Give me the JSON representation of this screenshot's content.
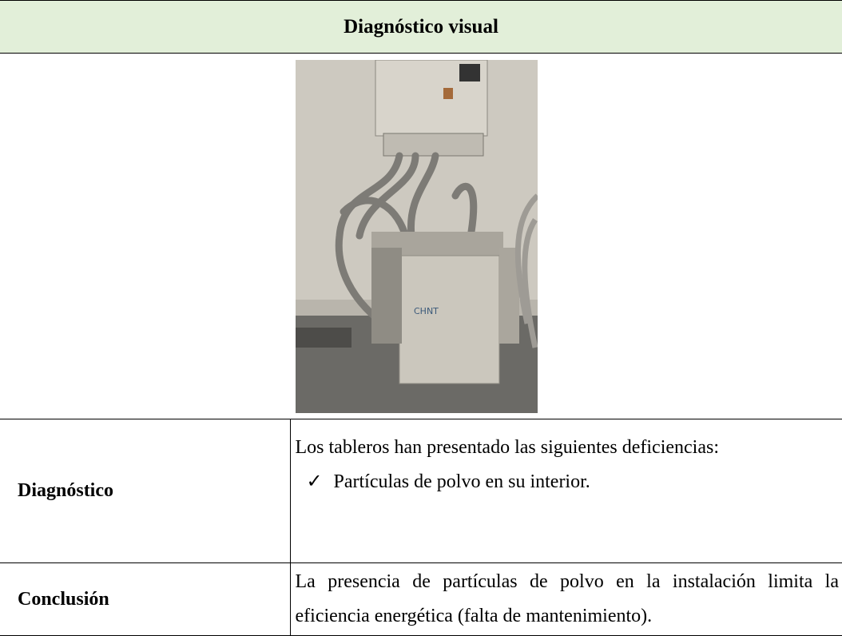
{
  "header": {
    "title": "Diagnóstico visual"
  },
  "table": {
    "rows": [
      {
        "label": "Diagnóstico",
        "text": "Los tableros han presentado las siguientes deficiencias:",
        "items": [
          "Partículas de polvo en su interior."
        ]
      },
      {
        "label": "Conclusión",
        "text": "La presencia de partículas de polvo en la instalación limita la eficiencia energética (falta de mantenimiento)."
      }
    ]
  }
}
